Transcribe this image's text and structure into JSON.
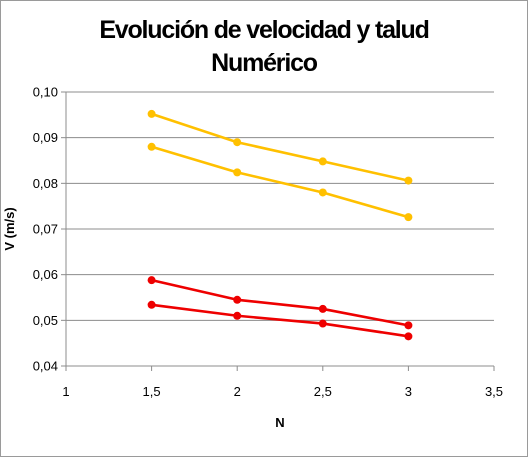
{
  "chart_data": {
    "type": "line",
    "title": [
      "Evolución de velocidad y talud",
      "Numérico"
    ],
    "xlabel": "N",
    "ylabel": "V (m/s)",
    "xlim": [
      1,
      3.5
    ],
    "ylim": [
      0.04,
      0.1
    ],
    "x_ticks": [
      "1",
      "1,5",
      "2",
      "2,5",
      "3",
      "3,5"
    ],
    "y_ticks": [
      "0,04",
      "0,05",
      "0,06",
      "0,07",
      "0,08",
      "0,09",
      "0,10"
    ],
    "grid": "horizontal",
    "legend": "none",
    "x": [
      1.5,
      2,
      2.5,
      3
    ],
    "series": [
      {
        "color": "#FFC000",
        "values": [
          0.0952,
          0.089,
          0.0848,
          0.0806
        ]
      },
      {
        "color": "#FFC000",
        "values": [
          0.088,
          0.0824,
          0.078,
          0.0726
        ]
      },
      {
        "color": "#EE0000",
        "values": [
          0.0588,
          0.0545,
          0.0525,
          0.0489
        ]
      },
      {
        "color": "#EE0000",
        "values": [
          0.0534,
          0.051,
          0.0493,
          0.0465
        ]
      }
    ]
  }
}
